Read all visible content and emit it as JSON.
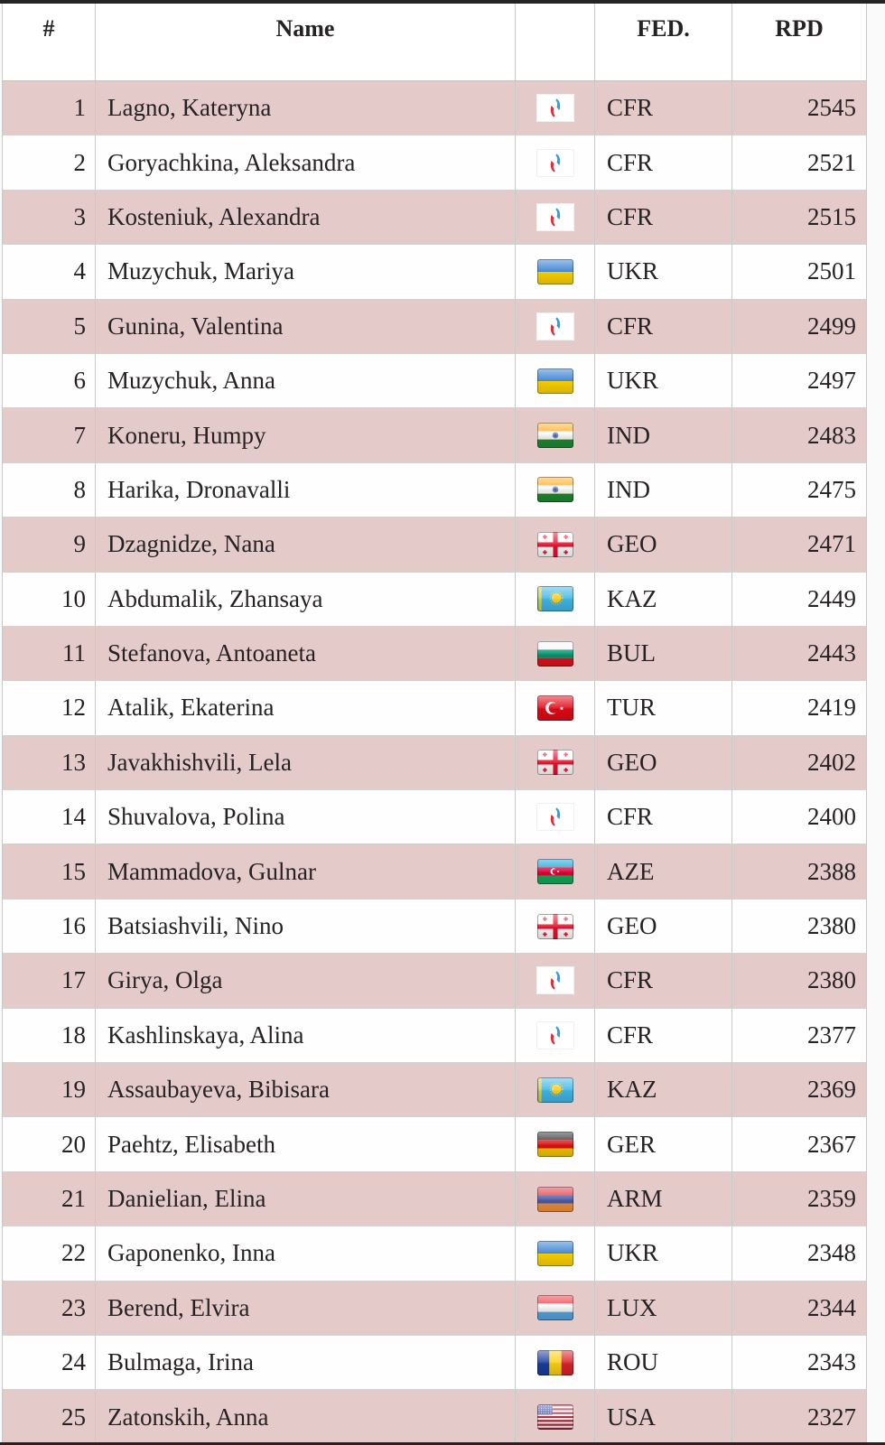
{
  "table": {
    "columns": {
      "rank": "#",
      "name": "Name",
      "flag": "",
      "fed": "FED.",
      "rpd": "RPD"
    },
    "rows": [
      {
        "rank": "1",
        "name": "Lagno, Kateryna",
        "flag": "CFR",
        "fed": "CFR",
        "rpd": "2545"
      },
      {
        "rank": "2",
        "name": "Goryachkina, Aleksandra",
        "flag": "CFR",
        "fed": "CFR",
        "rpd": "2521"
      },
      {
        "rank": "3",
        "name": "Kosteniuk, Alexandra",
        "flag": "CFR",
        "fed": "CFR",
        "rpd": "2515"
      },
      {
        "rank": "4",
        "name": "Muzychuk, Mariya",
        "flag": "UKR",
        "fed": "UKR",
        "rpd": "2501"
      },
      {
        "rank": "5",
        "name": "Gunina, Valentina",
        "flag": "CFR",
        "fed": "CFR",
        "rpd": "2499"
      },
      {
        "rank": "6",
        "name": "Muzychuk, Anna",
        "flag": "UKR",
        "fed": "UKR",
        "rpd": "2497"
      },
      {
        "rank": "7",
        "name": "Koneru, Humpy",
        "flag": "IND",
        "fed": "IND",
        "rpd": "2483"
      },
      {
        "rank": "8",
        "name": "Harika, Dronavalli",
        "flag": "IND",
        "fed": "IND",
        "rpd": "2475"
      },
      {
        "rank": "9",
        "name": "Dzagnidze, Nana",
        "flag": "GEO",
        "fed": "GEO",
        "rpd": "2471"
      },
      {
        "rank": "10",
        "name": "Abdumalik, Zhansaya",
        "flag": "KAZ",
        "fed": "KAZ",
        "rpd": "2449"
      },
      {
        "rank": "11",
        "name": "Stefanova, Antoaneta",
        "flag": "BUL",
        "fed": "BUL",
        "rpd": "2443"
      },
      {
        "rank": "12",
        "name": "Atalik, Ekaterina",
        "flag": "TUR",
        "fed": "TUR",
        "rpd": "2419"
      },
      {
        "rank": "13",
        "name": "Javakhishvili, Lela",
        "flag": "GEO",
        "fed": "GEO",
        "rpd": "2402"
      },
      {
        "rank": "14",
        "name": "Shuvalova, Polina",
        "flag": "CFR",
        "fed": "CFR",
        "rpd": "2400"
      },
      {
        "rank": "15",
        "name": "Mammadova, Gulnar",
        "flag": "AZE",
        "fed": "AZE",
        "rpd": "2388"
      },
      {
        "rank": "16",
        "name": "Batsiashvili, Nino",
        "flag": "GEO",
        "fed": "GEO",
        "rpd": "2380"
      },
      {
        "rank": "17",
        "name": "Girya, Olga",
        "flag": "CFR",
        "fed": "CFR",
        "rpd": "2380"
      },
      {
        "rank": "18",
        "name": "Kashlinskaya, Alina",
        "flag": "CFR",
        "fed": "CFR",
        "rpd": "2377"
      },
      {
        "rank": "19",
        "name": "Assaubayeva, Bibisara",
        "flag": "KAZ",
        "fed": "KAZ",
        "rpd": "2369"
      },
      {
        "rank": "20",
        "name": "Paehtz, Elisabeth",
        "flag": "GER",
        "fed": "GER",
        "rpd": "2367"
      },
      {
        "rank": "21",
        "name": "Danielian, Elina",
        "flag": "ARM",
        "fed": "ARM",
        "rpd": "2359"
      },
      {
        "rank": "22",
        "name": "Gaponenko, Inna",
        "flag": "UKR",
        "fed": "UKR",
        "rpd": "2348"
      },
      {
        "rank": "23",
        "name": "Berend, Elvira",
        "flag": "LUX",
        "fed": "LUX",
        "rpd": "2344"
      },
      {
        "rank": "24",
        "name": "Bulmaga, Irina",
        "flag": "ROU",
        "fed": "ROU",
        "rpd": "2343"
      },
      {
        "rank": "25",
        "name": "Zatonskih, Anna",
        "flag": "USA",
        "fed": "USA",
        "rpd": "2327"
      }
    ]
  },
  "colors": {
    "row_alt_pink": "#e5caca",
    "row_white": "#fefefe",
    "grid_line": "#c9c9c9",
    "edge_bar": "#242424",
    "text": "#262224"
  }
}
